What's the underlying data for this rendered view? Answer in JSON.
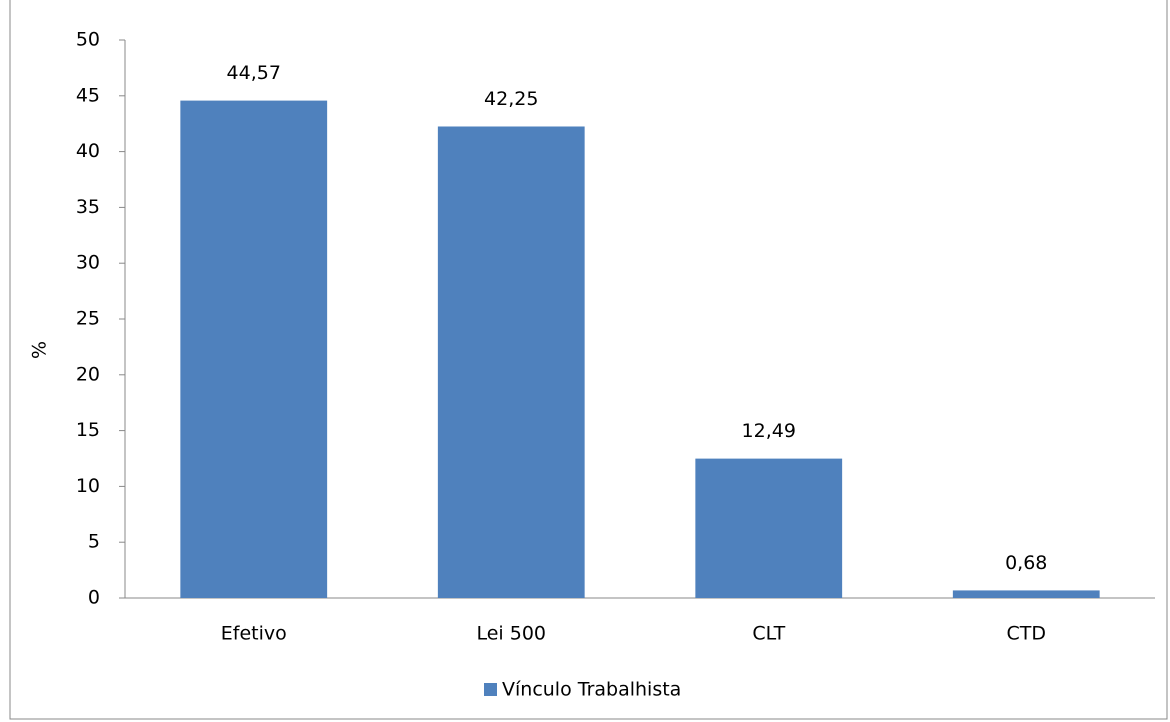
{
  "chart_data": {
    "type": "bar",
    "y_label": "%",
    "categories": [
      "Efetivo",
      "Lei 500",
      "CLT",
      "CTD"
    ],
    "series": [
      {
        "name": "Vínculo Trabalhista",
        "color": "#4f81bd",
        "values": [
          44.57,
          42.25,
          12.49,
          0.68
        ],
        "value_labels": [
          "44,57",
          "42,25",
          "12,49",
          "0,68"
        ]
      }
    ],
    "ylim": [
      0,
      50
    ],
    "yticks": [
      0,
      5,
      10,
      15,
      20,
      25,
      30,
      35,
      40,
      45,
      50
    ],
    "grid": false,
    "legend": "bottom"
  }
}
